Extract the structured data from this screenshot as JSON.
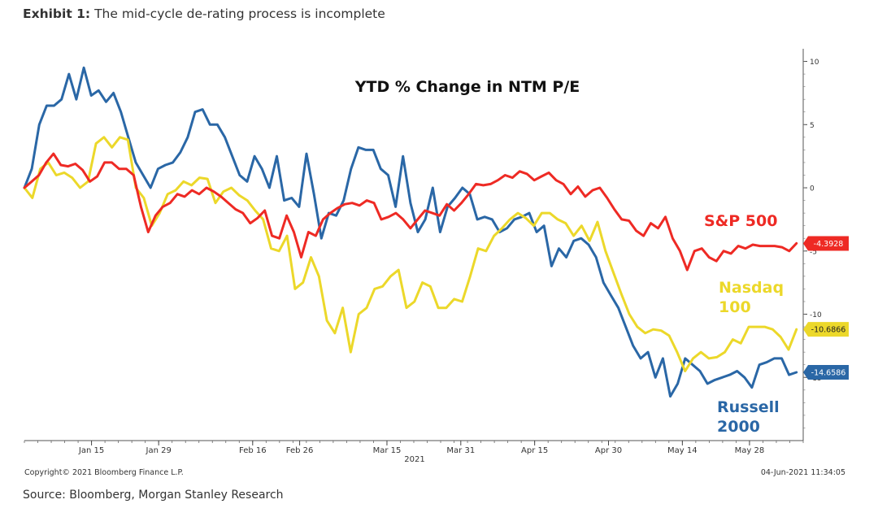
{
  "exhibit": {
    "lead": "Exhibit 1:",
    "title": "The mid-cycle de-rating process is incomplete"
  },
  "source": "Source: Bloomberg, Morgan Stanley Research",
  "chart_data": {
    "type": "line",
    "title": "YTD % Change in NTM P/E",
    "copyright": "Copyright© 2021 Bloomberg Finance L.P.",
    "timestamp": "04-Jun-2021 11:34:05",
    "year_label": "2021",
    "x_ticks": [
      "Jan 15",
      "Jan 29",
      "Feb 16",
      "Feb 26",
      "Mar 15",
      "Mar 31",
      "Apr 15",
      "Apr 30",
      "May 14",
      "May 28"
    ],
    "x_tick_positions": [
      10,
      20,
      34,
      41,
      54,
      65,
      76,
      87,
      98,
      108
    ],
    "x_range": [
      0,
      116
    ],
    "y_ticks": [
      "10",
      "5",
      "0",
      "-5",
      "-10",
      "-15"
    ],
    "y_tick_values": [
      10,
      5,
      0,
      -5,
      -10,
      -15
    ],
    "ylim": [
      -20,
      11
    ],
    "grid": false,
    "series": [
      {
        "name": "S&P 500",
        "label_lines": [
          "S&P 500"
        ],
        "color": "#ee2a24",
        "last_value": "-4.3928",
        "values": [
          0,
          0.5,
          1,
          2,
          2.7,
          1.8,
          1.7,
          1.9,
          1.4,
          0.5,
          0.9,
          2,
          2,
          1.5,
          1.5,
          1,
          -1.5,
          -3.5,
          -2.2,
          -1.5,
          -1.2,
          -0.5,
          -0.7,
          -0.2,
          -0.5,
          0,
          -0.3,
          -0.7,
          -1.2,
          -1.7,
          -2,
          -2.8,
          -2.4,
          -1.8,
          -3.8,
          -4,
          -2.2,
          -3.5,
          -5.5,
          -3.5,
          -3.8,
          -2.5,
          -2,
          -1.6,
          -1.3,
          -1.2,
          -1.4,
          -1,
          -1.2,
          -2.5,
          -2.3,
          -2,
          -2.5,
          -3.2,
          -2.5,
          -1.8,
          -2,
          -2.2,
          -1.3,
          -1.8,
          -1.2,
          -0.5,
          0.3,
          0.2,
          0.3,
          0.6,
          1,
          0.8,
          1.3,
          1.1,
          0.6,
          0.9,
          1.2,
          0.6,
          0.3,
          -0.5,
          0.1,
          -0.7,
          -0.2,
          0,
          -0.8,
          -1.7,
          -2.5,
          -2.6,
          -3.4,
          -3.8,
          -2.8,
          -3.2,
          -2.3,
          -4,
          -5,
          -6.5,
          -5,
          -4.8,
          -5.5,
          -5.8,
          -5,
          -5.2,
          -4.6,
          -4.8,
          -4.5,
          -4.6,
          -4.6,
          -4.6,
          -4.7,
          -5,
          -4.4
        ]
      },
      {
        "name": "Nasdaq 100",
        "label_lines": [
          "Nasdaq",
          "100"
        ],
        "color": "#ecd82a",
        "last_value": "-10.6866",
        "values": [
          0,
          -0.8,
          1.5,
          2,
          1,
          1.2,
          0.8,
          0,
          0.5,
          3.5,
          4,
          3.2,
          4,
          3.8,
          0,
          -0.8,
          -3,
          -2,
          -0.5,
          -0.2,
          0.5,
          0.2,
          0.8,
          0.7,
          -1.2,
          -0.3,
          0,
          -0.6,
          -1,
          -1.8,
          -2.5,
          -4.8,
          -5,
          -3.8,
          -8,
          -7.5,
          -5.5,
          -7,
          -10.5,
          -11.5,
          -9.5,
          -13,
          -10,
          -9.5,
          -8,
          -7.8,
          -7,
          -6.5,
          -9.5,
          -9,
          -7.5,
          -7.8,
          -9.5,
          -9.5,
          -8.8,
          -9,
          -7,
          -4.8,
          -5,
          -3.8,
          -3.2,
          -2.5,
          -2,
          -2.4,
          -3,
          -2,
          -2,
          -2.5,
          -2.8,
          -3.8,
          -3,
          -4.2,
          -2.7,
          -5,
          -6.7,
          -8.4,
          -10,
          -11,
          -11.5,
          -11.2,
          -11.3,
          -11.7,
          -13,
          -14.5,
          -13.5,
          -13,
          -13.5,
          -13.4,
          -13,
          -12,
          -12.3,
          -11,
          -11,
          -11,
          -11.2,
          -11.8,
          -12.8,
          -11.2
        ],
        "values_start_index": 0
      },
      {
        "name": "Russell 2000",
        "label_lines": [
          "Russell",
          "2000"
        ],
        "color": "#2a67a6",
        "last_value": "-14.6586",
        "values": [
          0,
          1.5,
          5,
          6.5,
          6.5,
          7,
          9,
          7,
          9.5,
          7.3,
          7.7,
          6.8,
          7.5,
          6,
          4,
          2,
          1,
          0,
          1.5,
          1.8,
          2,
          2.8,
          4,
          6,
          6.2,
          5,
          5,
          4,
          2.5,
          1,
          0.5,
          2.5,
          1.5,
          0,
          2.5,
          -1,
          -0.8,
          -1.5,
          2.7,
          -0.5,
          -4,
          -2,
          -2.2,
          -1,
          1.5,
          3.2,
          3,
          3,
          1.5,
          1,
          -1.5,
          2.5,
          -1.2,
          -3.5,
          -2.5,
          0,
          -3.5,
          -1.5,
          -0.8,
          0,
          -0.5,
          -2.5,
          -2.3,
          -2.5,
          -3.5,
          -3.2,
          -2.5,
          -2.3,
          -2,
          -3.5,
          -3,
          -6.2,
          -4.8,
          -5.5,
          -4.2,
          -4,
          -4.5,
          -5.5,
          -7.5,
          -8.5,
          -9.5,
          -11,
          -12.5,
          -13.5,
          -13,
          -15,
          -13.5,
          -16.5,
          -15.5,
          -13.5,
          -14,
          -14.5,
          -15.5,
          -15.2,
          -15,
          -14.8,
          -14.5,
          -15,
          -15.8,
          -14,
          -13.8,
          -13.5,
          -13.5,
          -14.8,
          -14.6
        ]
      }
    ]
  }
}
